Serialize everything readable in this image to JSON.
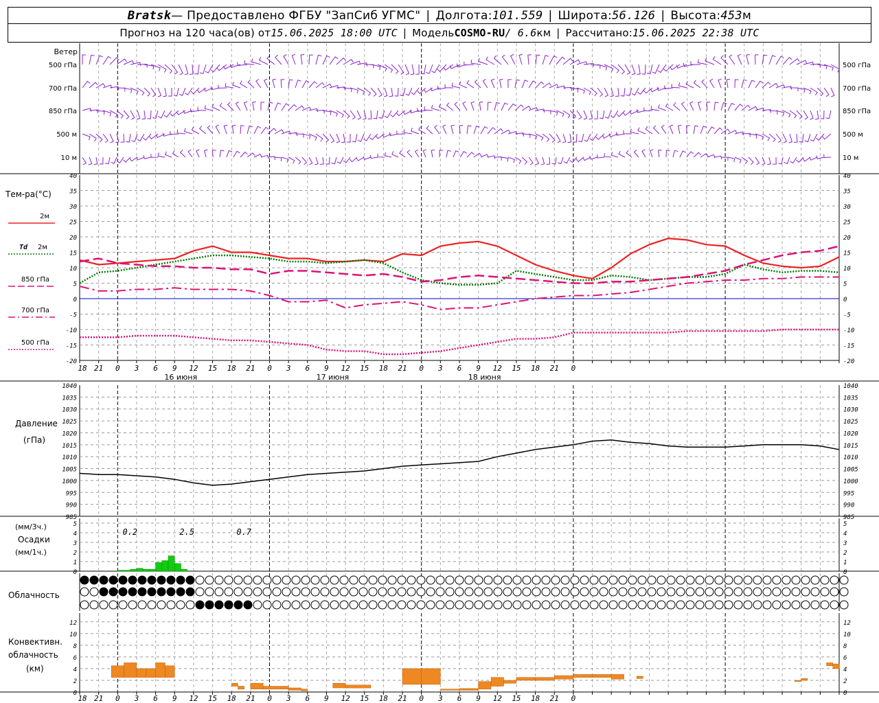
{
  "header": {
    "city": "Bratsk",
    "provider": " — Предоставлено ФГБУ \"ЗапСиб УГМС\"",
    "lon_label": "Долгота: ",
    "lon": "101.559",
    "lat_label": "Широта: ",
    "lat": "56.126",
    "alt_label": "Высота: ",
    "alt": "453",
    "alt_unit": "м",
    "fc_label": "Прогноз на 120 часа(ов) от ",
    "fc_time": "15.06.2025 18:00 UTC",
    "model_label": "Модель ",
    "model": "COSMO-RU",
    "model_res": " / 6.6",
    "model_res_unit": "км",
    "calc_label": "Рассчитано: ",
    "calc_time": "15.06.2025 22:38 UTC"
  },
  "colors": {
    "t2m": "#ee2222",
    "td2m": "#007700",
    "t850": "#dd1177",
    "t700": "#dd1177",
    "t500": "#dd1177",
    "wind": "#8822cc",
    "precip": "#11cc11",
    "conv": "#ee8822",
    "pressure": "#000000",
    "zero_line": "#0000cc"
  },
  "x_axis": {
    "hour_labels": [
      "18",
      "21",
      "0",
      "3",
      "6",
      "9",
      "12",
      "15",
      "18",
      "21",
      "0",
      "3",
      "6",
      "9",
      "12",
      "15",
      "18",
      "21",
      "0",
      "3",
      "6",
      "9",
      "12",
      "15",
      "18",
      "21",
      "0"
    ],
    "day_labels": [
      "16 июня",
      "17 июня",
      "18 июня"
    ]
  },
  "wind_panel": {
    "title": "Ветер",
    "levels": [
      "500 гПа",
      "700 гПа",
      "850 гПа",
      "500 м",
      "10 м"
    ]
  },
  "temp_panel": {
    "title": "Тем-ра(°C)",
    "legend": [
      {
        "key": "t2m",
        "label": "2м"
      },
      {
        "key": "td2m",
        "label_bold": "Td",
        "label": "2м"
      },
      {
        "key": "t850",
        "label": "850 гПа"
      },
      {
        "key": "t700",
        "label": "700 гПа"
      },
      {
        "key": "t500",
        "label": "500 гПа"
      }
    ],
    "yticks": [
      "40",
      "35",
      "30",
      "25",
      "20",
      "15",
      "10",
      "5",
      "0",
      "-5",
      "-10",
      "-15",
      "-20"
    ]
  },
  "pressure_panel": {
    "title1": "Давление",
    "title2": "(гПа)",
    "yticks": [
      "1040",
      "1035",
      "1030",
      "1025",
      "1020",
      "1015",
      "1010",
      "1005",
      "1000",
      "995",
      "990",
      "985"
    ]
  },
  "precip_panel": {
    "unit3": "(мм/3ч.)",
    "title": "Осадки",
    "unit1": "(мм/1ч.)",
    "yticks": [
      "5",
      "4",
      "3",
      "2",
      "1",
      "0"
    ],
    "totals": [
      "0.2",
      "2.5",
      "0.7"
    ]
  },
  "cloud_panel": {
    "title": "Облачность"
  },
  "conv_panel": {
    "title1": "Конвективн.",
    "title2": "облачность",
    "title3": "(км)",
    "yticks": [
      "12",
      "10",
      "8",
      "6",
      "4",
      "2",
      "0"
    ]
  },
  "chart_data": [
    {
      "type": "line",
      "title": "Тем-ра(°C)",
      "x_hours_from_start": [
        0,
        3,
        6,
        9,
        12,
        15,
        18,
        21,
        24,
        27,
        30,
        33,
        36,
        39,
        42,
        45,
        48,
        51,
        54,
        57,
        60,
        63,
        66,
        69,
        72,
        75,
        78,
        81,
        84,
        87,
        90,
        93,
        96,
        99,
        102,
        105,
        108,
        111,
        114,
        117,
        120
      ],
      "ylim": [
        -20,
        40
      ],
      "series": [
        {
          "name": "2м",
          "values": [
            12.5,
            11,
            11.5,
            12,
            12.5,
            13,
            15.5,
            17,
            15,
            15,
            14,
            13,
            13,
            12,
            12,
            12.5,
            12,
            14.5,
            14,
            17,
            18,
            18.5,
            17,
            14,
            11,
            9,
            7.5,
            6.5,
            10,
            14.5,
            17.5,
            19.5,
            19,
            17.5,
            17,
            14,
            11.5,
            10.5,
            10,
            10.5,
            13.5
          ]
        },
        {
          "name": "Td 2м",
          "values": [
            5,
            8.5,
            9,
            10,
            11,
            12,
            13,
            14,
            14,
            13.5,
            13,
            12,
            12,
            11.5,
            12,
            12.5,
            11.5,
            8.5,
            6,
            5,
            4.5,
            4.5,
            5,
            9,
            8,
            7,
            6,
            6,
            7.5,
            7,
            6,
            6.5,
            7,
            7,
            8,
            11,
            9.5,
            8.5,
            9,
            9,
            8.5
          ]
        },
        {
          "name": "850 гПа",
          "values": [
            12,
            13,
            11.5,
            11,
            10.5,
            10.5,
            10,
            10,
            9.5,
            9.5,
            8,
            9,
            9,
            8.5,
            8,
            7.5,
            8,
            7,
            5.5,
            6,
            7,
            7.5,
            7,
            6.5,
            6,
            5.5,
            5,
            5,
            5.5,
            5.5,
            6,
            6.5,
            7,
            8,
            9,
            11,
            12.5,
            14,
            15,
            15.5,
            17
          ]
        },
        {
          "name": "700 гПа",
          "values": [
            4,
            2.5,
            2.5,
            3,
            3,
            3.5,
            3,
            3,
            3,
            2.5,
            1,
            -1,
            -1,
            -0.5,
            -3,
            -2,
            -1.5,
            -1,
            -2,
            -3.5,
            -3,
            -3,
            -2,
            -1,
            0,
            0.5,
            1,
            1,
            1.5,
            2,
            3,
            4,
            5,
            5.5,
            6,
            6,
            6.5,
            6.5,
            7,
            7,
            7
          ]
        },
        {
          "name": "500 гПа",
          "values": [
            -12.5,
            -12.5,
            -12.5,
            -12,
            -12,
            -12,
            -12.5,
            -13,
            -13.5,
            -13.5,
            -14,
            -14.5,
            -15,
            -16.5,
            -17,
            -17,
            -18,
            -18,
            -17.5,
            -17,
            -16,
            -15,
            -14,
            -13,
            -13,
            -12.5,
            -11,
            -11,
            -11,
            -11,
            -11,
            -11,
            -10.5,
            -10.5,
            -10.5,
            -10.5,
            -10.5,
            -10,
            -10,
            -10,
            -10
          ]
        }
      ]
    },
    {
      "type": "line",
      "title": "Давление",
      "x_hours_from_start": [
        0,
        3,
        6,
        9,
        12,
        15,
        18,
        21,
        24,
        27,
        30,
        33,
        36,
        39,
        42,
        45,
        48,
        51,
        54,
        57,
        60,
        63,
        66,
        69,
        72,
        75,
        78,
        81,
        84,
        87,
        90,
        93,
        96,
        99,
        102,
        105,
        108,
        111,
        114,
        117,
        120
      ],
      "ylim": [
        985,
        1040
      ],
      "series": [
        {
          "name": "Давление",
          "values": [
            1003,
            1002.5,
            1002.5,
            1002,
            1001.5,
            1000.5,
            999,
            998,
            998.5,
            999.5,
            1000.5,
            1001.5,
            1002.5,
            1003,
            1003.5,
            1004,
            1005,
            1006,
            1006.5,
            1007,
            1007.5,
            1008,
            1010,
            1011.5,
            1013,
            1014,
            1015,
            1016.5,
            1017,
            1016,
            1015.5,
            1014.5,
            1014,
            1014,
            1014,
            1014.5,
            1015,
            1015,
            1015,
            1014.5,
            1013
          ]
        }
      ]
    },
    {
      "type": "bar",
      "title": "Осадки",
      "x_hours_from_start": [
        6,
        7,
        8,
        9,
        10,
        11,
        12,
        13,
        14,
        15,
        16
      ],
      "series": [
        {
          "name": "мм/1ч.",
          "values": [
            0.1,
            0.1,
            0.2,
            0.3,
            0.2,
            0.2,
            0.9,
            1.1,
            1.6,
            0.8,
            0.2
          ]
        }
      ]
    },
    {
      "type": "bar",
      "title": "Конвективн. облачность (км)",
      "segments": [
        {
          "x0": 5,
          "x1": 7,
          "base": 2.5,
          "top": 4.5
        },
        {
          "x0": 7,
          "x1": 9,
          "base": 2.5,
          "top": 5
        },
        {
          "x0": 9,
          "x1": 10.5,
          "base": 2.5,
          "top": 4
        },
        {
          "x0": 10.5,
          "x1": 12,
          "base": 2.5,
          "top": 4
        },
        {
          "x0": 12,
          "x1": 13.5,
          "base": 2.5,
          "top": 5
        },
        {
          "x0": 13.5,
          "x1": 15,
          "base": 2.5,
          "top": 4.5
        },
        {
          "x0": 24,
          "x1": 25,
          "base": 1,
          "top": 1.5
        },
        {
          "x0": 25,
          "x1": 26,
          "base": 0.5,
          "top": 1
        },
        {
          "x0": 27,
          "x1": 29,
          "base": 0.5,
          "top": 1.5
        },
        {
          "x0": 29,
          "x1": 33,
          "base": 0.5,
          "top": 1
        },
        {
          "x0": 33,
          "x1": 35,
          "base": 0.3,
          "top": 0.7
        },
        {
          "x0": 35,
          "x1": 36,
          "base": 0.2,
          "top": 0.5
        },
        {
          "x0": 40,
          "x1": 42,
          "base": 0.7,
          "top": 1.5
        },
        {
          "x0": 42,
          "x1": 46,
          "base": 0.7,
          "top": 1.2
        },
        {
          "x0": 51,
          "x1": 54,
          "base": 1.3,
          "top": 4
        },
        {
          "x0": 54,
          "x1": 57,
          "base": 1.3,
          "top": 4
        },
        {
          "x0": 57,
          "x1": 60,
          "base": 0.3,
          "top": 0.5
        },
        {
          "x0": 60,
          "x1": 63,
          "base": 0.3,
          "top": 0.6
        },
        {
          "x0": 63,
          "x1": 65,
          "base": 0.5,
          "top": 1.8
        },
        {
          "x0": 65,
          "x1": 67,
          "base": 1,
          "top": 2.5
        },
        {
          "x0": 67,
          "x1": 69,
          "base": 1.5,
          "top": 2
        },
        {
          "x0": 69,
          "x1": 72,
          "base": 2,
          "top": 2.5
        },
        {
          "x0": 72,
          "x1": 75,
          "base": 2,
          "top": 2.5
        },
        {
          "x0": 75,
          "x1": 78,
          "base": 2.2,
          "top": 2.8
        },
        {
          "x0": 78,
          "x1": 81,
          "base": 2.5,
          "top": 3
        },
        {
          "x0": 81,
          "x1": 84,
          "base": 2.5,
          "top": 3
        },
        {
          "x0": 84,
          "x1": 86,
          "base": 2.2,
          "top": 3
        },
        {
          "x0": 88,
          "x1": 89,
          "base": 2.3,
          "top": 2.7
        },
        {
          "x0": 113,
          "x1": 114,
          "base": 1.8,
          "top": 2
        },
        {
          "x0": 114,
          "x1": 115,
          "base": 2,
          "top": 2.3
        },
        {
          "x0": 118,
          "x1": 119,
          "base": 4.5,
          "top": 5
        },
        {
          "x0": 119,
          "x1": 120,
          "base": 4,
          "top": 4.8
        }
      ]
    }
  ]
}
